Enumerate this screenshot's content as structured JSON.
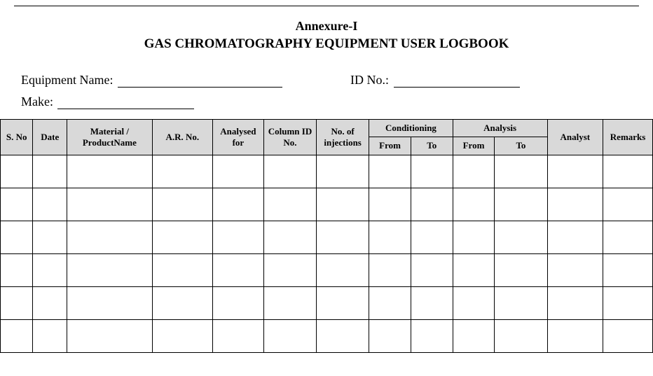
{
  "header": {
    "annexure": "Annexure-I",
    "title": "GAS CHROMATOGRAPHY EQUIPMENT USER LOGBOOK"
  },
  "meta": {
    "equipment_name_label": "Equipment Name: ",
    "equipment_name_value": "",
    "id_no_label": "ID No.: ",
    "id_no_value": "",
    "make_label": "Make: ",
    "make_value": ""
  },
  "table": {
    "header_bg": "#d9d9d9",
    "border_color": "#000000",
    "columns": {
      "sno": "S. No",
      "date": "Date",
      "material": "Material / ProductName",
      "arno": "A.R. No.",
      "analysed_for": "Analysed for",
      "column_id": "Column ID No.",
      "injections": "No. of injections",
      "conditioning": "Conditioning",
      "cond_from": "From",
      "cond_to": "To",
      "analysis": "Analysis",
      "an_from": "From",
      "an_to": "To",
      "analyst": "Analyst",
      "remarks": "Remarks"
    },
    "rows": [
      [
        "",
        "",
        "",
        "",
        "",
        "",
        "",
        "",
        "",
        "",
        "",
        "",
        ""
      ],
      [
        "",
        "",
        "",
        "",
        "",
        "",
        "",
        "",
        "",
        "",
        "",
        "",
        ""
      ],
      [
        "",
        "",
        "",
        "",
        "",
        "",
        "",
        "",
        "",
        "",
        "",
        "",
        ""
      ],
      [
        "",
        "",
        "",
        "",
        "",
        "",
        "",
        "",
        "",
        "",
        "",
        "",
        ""
      ],
      [
        "",
        "",
        "",
        "",
        "",
        "",
        "",
        "",
        "",
        "",
        "",
        "",
        ""
      ],
      [
        "",
        "",
        "",
        "",
        "",
        "",
        "",
        "",
        "",
        "",
        "",
        "",
        ""
      ]
    ]
  }
}
